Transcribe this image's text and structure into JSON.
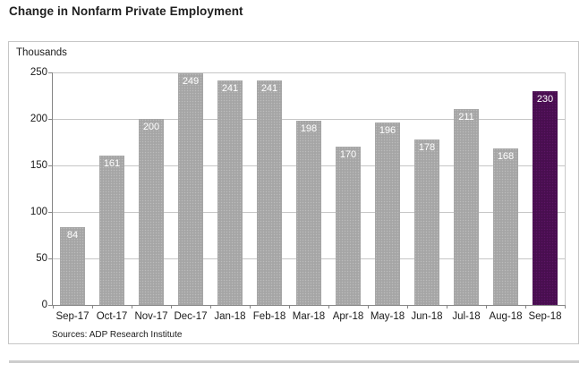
{
  "page_title": "Change in Nonfarm Private Employment",
  "source_note": "Sources: ADP Research Institute",
  "colors": {
    "bar_gray": "#a9a9a9",
    "bar_highlight_purple": "#4b0f52",
    "gridline": "#c6c6c6",
    "axis_line": "#858585",
    "value_label_text": "#ffffff",
    "title_text": "#1f1f1f"
  },
  "chart_data": {
    "type": "bar",
    "title": "Change in Nonfarm Private Employment",
    "ylabel": "Thousands",
    "xlabel": "",
    "categories": [
      "Sep-17",
      "Oct-17",
      "Nov-17",
      "Dec-17",
      "Jan-18",
      "Feb-18",
      "Mar-18",
      "Apr-18",
      "May-18",
      "Jun-18",
      "Jul-18",
      "Aug-18",
      "Sep-18"
    ],
    "values": [
      84,
      161,
      200,
      249,
      241,
      241,
      198,
      170,
      196,
      178,
      211,
      168,
      230
    ],
    "ylim": [
      0,
      250
    ],
    "ytick_step": 50,
    "yticks": [
      0,
      50,
      100,
      150,
      200,
      250
    ],
    "grid": "horizontal",
    "legend": "none",
    "value_labels": "inside-top-white",
    "highlight_index": 12,
    "annotation": "Last bar (Sep-18) highlighted in dark purple; all other bars gray"
  }
}
